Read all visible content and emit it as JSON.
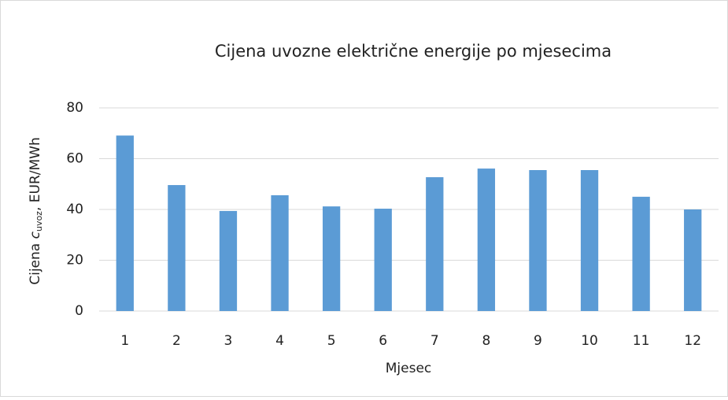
{
  "chart_data": {
    "type": "bar",
    "title": "Cijena uvozne električne energije po mjesecima",
    "xlabel": "Mjesec",
    "ylabel": {
      "prefix": "Cijena ",
      "symbol": "c",
      "subscript": "uvoz",
      "suffix": ", EUR/MWh"
    },
    "categories": [
      "1",
      "2",
      "3",
      "4",
      "5",
      "6",
      "7",
      "8",
      "9",
      "10",
      "11",
      "12"
    ],
    "values": [
      69.1,
      49.6,
      39.4,
      45.6,
      41.2,
      40.3,
      52.7,
      56.1,
      55.5,
      55.5,
      45,
      40
    ],
    "color": "#5b9bd5",
    "ylim": [
      0,
      80
    ],
    "yticks": [
      0,
      20,
      40,
      60,
      80
    ],
    "grid": true
  }
}
